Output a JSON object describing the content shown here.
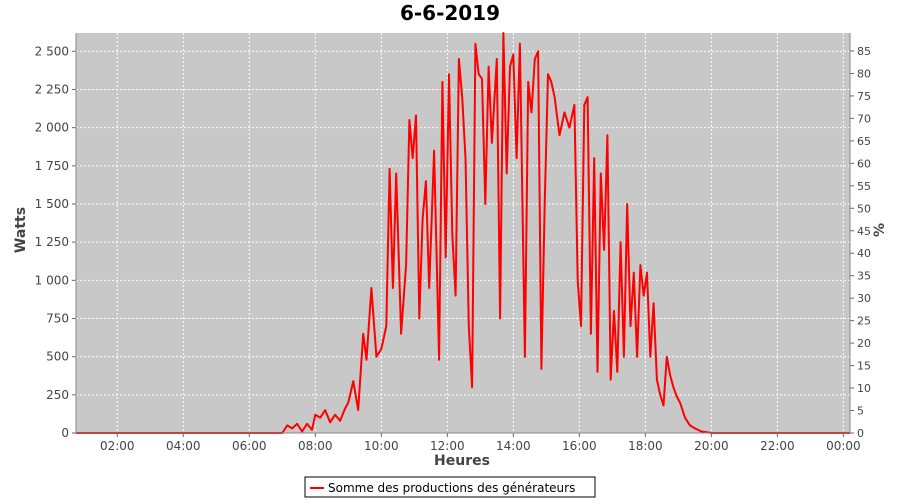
{
  "chart_data": {
    "type": "line",
    "title": "6-6-2019",
    "xlabel": "Heures",
    "ylabel": "Watts",
    "y2label": "%",
    "xlim": [
      0.75,
      24.2
    ],
    "ylim": [
      0,
      2620
    ],
    "y2lim": [
      0,
      89
    ],
    "x_ticks": [
      2,
      4,
      6,
      8,
      10,
      12,
      14,
      16,
      18,
      20,
      22,
      24
    ],
    "x_tick_labels": [
      "02:00",
      "04:00",
      "06:00",
      "08:00",
      "10:00",
      "12:00",
      "14:00",
      "16:00",
      "18:00",
      "20:00",
      "22:00",
      "00:00"
    ],
    "y_ticks": [
      0,
      250,
      500,
      750,
      1000,
      1250,
      1500,
      1750,
      2000,
      2250,
      2500
    ],
    "y_tick_labels": [
      "0",
      "250",
      "500",
      "750",
      "1 000",
      "1 250",
      "1 500",
      "1 750",
      "2 000",
      "2 250",
      "2 500"
    ],
    "y2_ticks": [
      0,
      5,
      10,
      15,
      20,
      25,
      30,
      35,
      40,
      45,
      50,
      55,
      60,
      65,
      70,
      75,
      80,
      85
    ],
    "y2_tick_labels": [
      "0",
      "5",
      "10",
      "15",
      "20",
      "25",
      "30",
      "35",
      "40",
      "45",
      "50",
      "55",
      "60",
      "65",
      "70",
      "75",
      "80",
      "85"
    ],
    "grid": true,
    "legend_position": "bottom",
    "colors": {
      "series": "#ff0000",
      "plot_bg": "#c8c8c8",
      "grid": "#ffffff"
    },
    "series": [
      {
        "name": "Somme des productions des  générateurs",
        "points": [
          [
            0.75,
            0
          ],
          [
            7.0,
            0
          ],
          [
            7.15,
            50
          ],
          [
            7.3,
            30
          ],
          [
            7.45,
            60
          ],
          [
            7.6,
            10
          ],
          [
            7.75,
            60
          ],
          [
            7.9,
            20
          ],
          [
            8.0,
            120
          ],
          [
            8.15,
            100
          ],
          [
            8.3,
            150
          ],
          [
            8.45,
            70
          ],
          [
            8.6,
            120
          ],
          [
            8.75,
            80
          ],
          [
            8.9,
            160
          ],
          [
            9.0,
            200
          ],
          [
            9.15,
            340
          ],
          [
            9.3,
            150
          ],
          [
            9.45,
            650
          ],
          [
            9.55,
            480
          ],
          [
            9.7,
            950
          ],
          [
            9.85,
            500
          ],
          [
            10.0,
            550
          ],
          [
            10.15,
            700
          ],
          [
            10.25,
            1730
          ],
          [
            10.35,
            950
          ],
          [
            10.45,
            1700
          ],
          [
            10.6,
            650
          ],
          [
            10.75,
            1100
          ],
          [
            10.85,
            2050
          ],
          [
            10.95,
            1800
          ],
          [
            11.05,
            2080
          ],
          [
            11.15,
            750
          ],
          [
            11.25,
            1400
          ],
          [
            11.35,
            1650
          ],
          [
            11.45,
            950
          ],
          [
            11.6,
            1850
          ],
          [
            11.75,
            480
          ],
          [
            11.85,
            2300
          ],
          [
            11.95,
            1150
          ],
          [
            12.05,
            2350
          ],
          [
            12.15,
            1300
          ],
          [
            12.25,
            900
          ],
          [
            12.35,
            2450
          ],
          [
            12.45,
            2200
          ],
          [
            12.55,
            1800
          ],
          [
            12.65,
            700
          ],
          [
            12.75,
            300
          ],
          [
            12.85,
            2550
          ],
          [
            12.95,
            2350
          ],
          [
            13.05,
            2320
          ],
          [
            13.15,
            1500
          ],
          [
            13.25,
            2400
          ],
          [
            13.35,
            1900
          ],
          [
            13.5,
            2450
          ],
          [
            13.6,
            750
          ],
          [
            13.7,
            2620
          ],
          [
            13.8,
            1700
          ],
          [
            13.9,
            2400
          ],
          [
            14.0,
            2480
          ],
          [
            14.1,
            1800
          ],
          [
            14.2,
            2550
          ],
          [
            14.35,
            500
          ],
          [
            14.45,
            2300
          ],
          [
            14.55,
            2100
          ],
          [
            14.65,
            2450
          ],
          [
            14.75,
            2500
          ],
          [
            14.85,
            420
          ],
          [
            14.95,
            1500
          ],
          [
            15.05,
            2350
          ],
          [
            15.15,
            2300
          ],
          [
            15.25,
            2200
          ],
          [
            15.4,
            1950
          ],
          [
            15.55,
            2100
          ],
          [
            15.7,
            2000
          ],
          [
            15.85,
            2150
          ],
          [
            15.95,
            1000
          ],
          [
            16.05,
            700
          ],
          [
            16.15,
            2150
          ],
          [
            16.25,
            2200
          ],
          [
            16.35,
            650
          ],
          [
            16.45,
            1800
          ],
          [
            16.55,
            400
          ],
          [
            16.65,
            1700
          ],
          [
            16.75,
            1200
          ],
          [
            16.85,
            1950
          ],
          [
            16.95,
            350
          ],
          [
            17.05,
            800
          ],
          [
            17.15,
            400
          ],
          [
            17.25,
            1250
          ],
          [
            17.35,
            500
          ],
          [
            17.45,
            1500
          ],
          [
            17.55,
            700
          ],
          [
            17.65,
            1050
          ],
          [
            17.75,
            500
          ],
          [
            17.85,
            1100
          ],
          [
            17.95,
            900
          ],
          [
            18.05,
            1050
          ],
          [
            18.15,
            500
          ],
          [
            18.25,
            850
          ],
          [
            18.35,
            350
          ],
          [
            18.45,
            250
          ],
          [
            18.55,
            180
          ],
          [
            18.65,
            500
          ],
          [
            18.75,
            380
          ],
          [
            18.85,
            300
          ],
          [
            18.95,
            240
          ],
          [
            19.05,
            200
          ],
          [
            19.2,
            100
          ],
          [
            19.35,
            50
          ],
          [
            19.5,
            30
          ],
          [
            19.7,
            10
          ],
          [
            20.0,
            0
          ],
          [
            24.2,
            0
          ]
        ]
      }
    ]
  }
}
